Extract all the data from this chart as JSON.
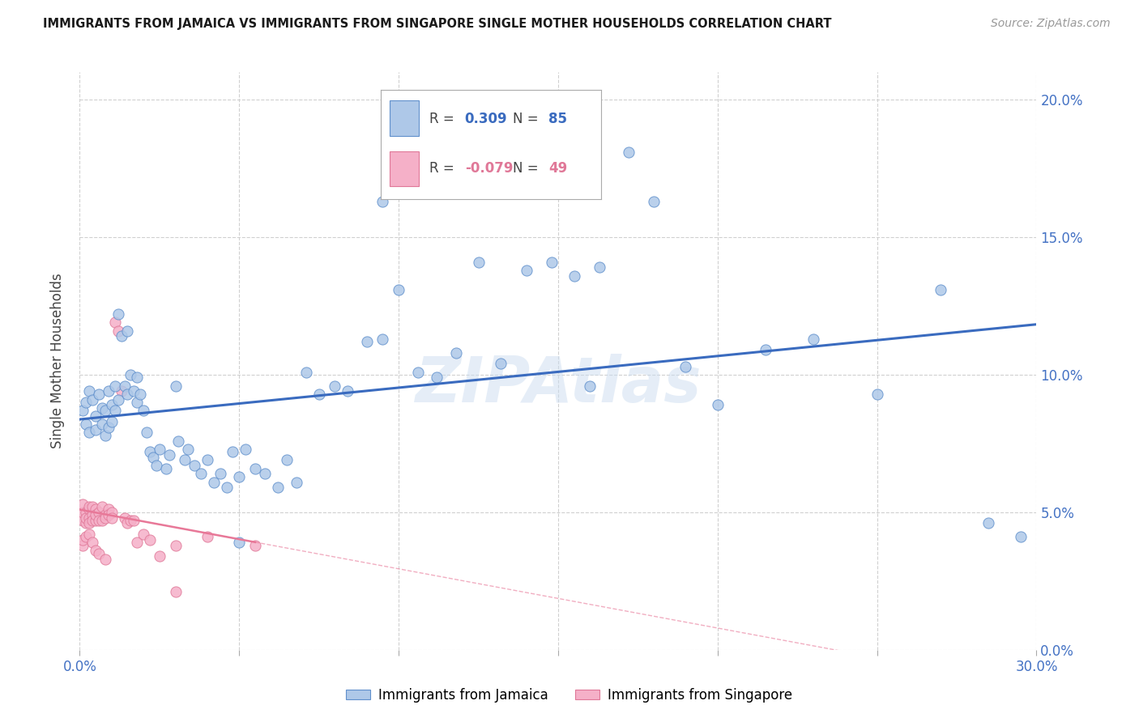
{
  "title": "IMMIGRANTS FROM JAMAICA VS IMMIGRANTS FROM SINGAPORE SINGLE MOTHER HOUSEHOLDS CORRELATION CHART",
  "source": "Source: ZipAtlas.com",
  "ylabel": "Single Mother Households",
  "x_min": 0.0,
  "x_max": 0.3,
  "y_min": 0.0,
  "y_max": 0.21,
  "jamaica_color": "#aec8e8",
  "jamaica_edge_color": "#6090cc",
  "singapore_color": "#f5b0c8",
  "singapore_edge_color": "#e07898",
  "jamaica_line_color": "#3a6bbf",
  "singapore_line_color": "#e87898",
  "jamaica_R": 0.309,
  "jamaica_N": 85,
  "singapore_R": -0.079,
  "singapore_N": 49,
  "watermark": "ZIPAtlas",
  "title_color": "#1a1a1a",
  "source_color": "#999999",
  "axis_label_color": "#4472c4",
  "grid_color": "#d0d0d0",
  "jamaica_x": [
    0.001,
    0.002,
    0.002,
    0.003,
    0.003,
    0.004,
    0.005,
    0.005,
    0.006,
    0.007,
    0.007,
    0.008,
    0.008,
    0.009,
    0.009,
    0.01,
    0.01,
    0.011,
    0.011,
    0.012,
    0.012,
    0.013,
    0.014,
    0.015,
    0.015,
    0.016,
    0.017,
    0.018,
    0.018,
    0.019,
    0.02,
    0.021,
    0.022,
    0.023,
    0.024,
    0.025,
    0.027,
    0.028,
    0.03,
    0.031,
    0.033,
    0.034,
    0.036,
    0.038,
    0.04,
    0.042,
    0.044,
    0.046,
    0.048,
    0.05,
    0.052,
    0.055,
    0.058,
    0.062,
    0.065,
    0.068,
    0.071,
    0.075,
    0.08,
    0.084,
    0.09,
    0.095,
    0.1,
    0.106,
    0.112,
    0.118,
    0.125,
    0.132,
    0.14,
    0.148,
    0.155,
    0.163,
    0.172,
    0.18,
    0.19,
    0.2,
    0.215,
    0.23,
    0.25,
    0.27,
    0.285,
    0.295,
    0.05,
    0.095,
    0.16
  ],
  "jamaica_y": [
    0.087,
    0.09,
    0.082,
    0.094,
    0.079,
    0.091,
    0.085,
    0.08,
    0.093,
    0.088,
    0.082,
    0.087,
    0.078,
    0.094,
    0.081,
    0.089,
    0.083,
    0.096,
    0.087,
    0.091,
    0.122,
    0.114,
    0.096,
    0.116,
    0.093,
    0.1,
    0.094,
    0.099,
    0.09,
    0.093,
    0.087,
    0.079,
    0.072,
    0.07,
    0.067,
    0.073,
    0.066,
    0.071,
    0.096,
    0.076,
    0.069,
    0.073,
    0.067,
    0.064,
    0.069,
    0.061,
    0.064,
    0.059,
    0.072,
    0.063,
    0.073,
    0.066,
    0.064,
    0.059,
    0.069,
    0.061,
    0.101,
    0.093,
    0.096,
    0.094,
    0.112,
    0.113,
    0.131,
    0.101,
    0.099,
    0.108,
    0.141,
    0.104,
    0.138,
    0.141,
    0.136,
    0.139,
    0.181,
    0.163,
    0.103,
    0.089,
    0.109,
    0.113,
    0.093,
    0.131,
    0.046,
    0.041,
    0.039,
    0.163,
    0.096
  ],
  "singapore_x": [
    0.001,
    0.001,
    0.001,
    0.002,
    0.002,
    0.002,
    0.003,
    0.003,
    0.003,
    0.003,
    0.004,
    0.004,
    0.004,
    0.005,
    0.005,
    0.005,
    0.006,
    0.006,
    0.007,
    0.007,
    0.008,
    0.008,
    0.009,
    0.009,
    0.01,
    0.01,
    0.011,
    0.012,
    0.013,
    0.014,
    0.015,
    0.016,
    0.017,
    0.018,
    0.02,
    0.022,
    0.025,
    0.03,
    0.04,
    0.055,
    0.001,
    0.001,
    0.002,
    0.003,
    0.004,
    0.005,
    0.006,
    0.008,
    0.03
  ],
  "singapore_y": [
    0.047,
    0.05,
    0.053,
    0.046,
    0.05,
    0.048,
    0.051,
    0.048,
    0.046,
    0.052,
    0.049,
    0.047,
    0.052,
    0.051,
    0.047,
    0.049,
    0.05,
    0.047,
    0.052,
    0.047,
    0.049,
    0.048,
    0.051,
    0.049,
    0.05,
    0.048,
    0.119,
    0.116,
    0.094,
    0.048,
    0.046,
    0.047,
    0.047,
    0.039,
    0.042,
    0.04,
    0.034,
    0.038,
    0.041,
    0.038,
    0.038,
    0.04,
    0.041,
    0.042,
    0.039,
    0.036,
    0.035,
    0.033,
    0.021
  ]
}
